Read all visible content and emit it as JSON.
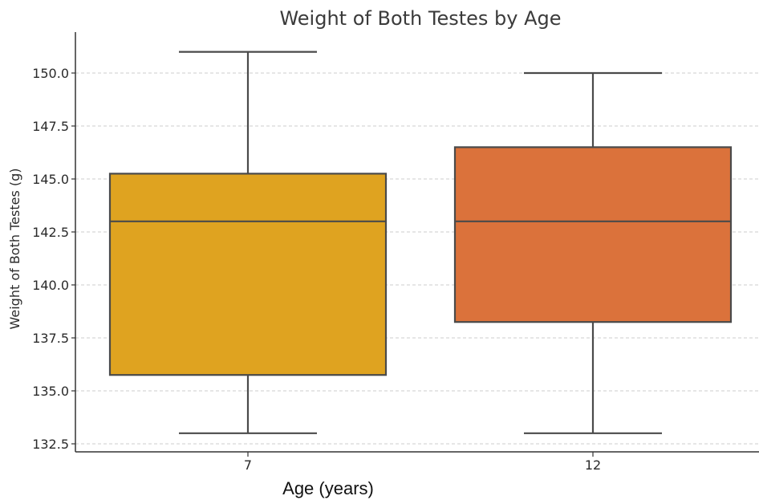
{
  "chart_data": {
    "type": "box",
    "title": "Weight of Both Testes by Age",
    "xlabel": "Age (years)",
    "ylabel": "Weight of Both Testes (g)",
    "ylim": [
      132.2,
      152.0
    ],
    "yticks": [
      "132.5",
      "135.0",
      "137.5",
      "140.0",
      "142.5",
      "145.0",
      "147.5",
      "150.0"
    ],
    "ytick_values": [
      132.5,
      135.0,
      137.5,
      140.0,
      142.5,
      145.0,
      147.5,
      150.0
    ],
    "grid": true,
    "categories": [
      "7",
      "12"
    ],
    "boxes": [
      {
        "category": "7",
        "min": 133.0,
        "q1": 135.75,
        "median": 143.0,
        "q3": 145.25,
        "max": 151.0,
        "color": "#DFA320"
      },
      {
        "category": "12",
        "min": 133.0,
        "q1": 138.25,
        "median": 143.0,
        "q3": 146.5,
        "max": 150.0,
        "color": "#DB723B"
      }
    ]
  }
}
